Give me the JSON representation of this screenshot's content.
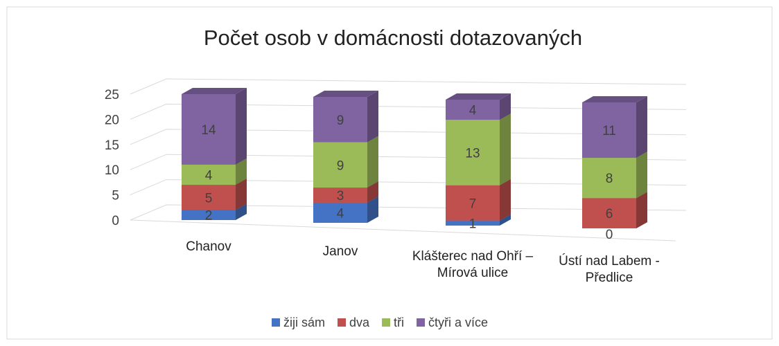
{
  "chart_data": {
    "type": "bar3d_stacked",
    "title": "Počet osob v domácnosti dotazovaných",
    "categories": [
      "Chanov",
      "Janov",
      "Klášterec nad Ohří – Mírová ulice",
      "Ústí nad Labem - Předlice"
    ],
    "series": [
      {
        "name": "žiji sám",
        "color": "#4472c4",
        "values": [
          2,
          4,
          1,
          0
        ]
      },
      {
        "name": "dva",
        "color": "#c0504d",
        "values": [
          5,
          3,
          7,
          6
        ]
      },
      {
        "name": "tři",
        "color": "#9bbb59",
        "values": [
          4,
          9,
          13,
          8
        ]
      },
      {
        "name": "čtyři a více",
        "color": "#8064a2",
        "values": [
          14,
          9,
          4,
          11
        ]
      }
    ],
    "ylim": [
      0,
      25
    ],
    "yticks": [
      0,
      5,
      10,
      15,
      20,
      25
    ],
    "grid": true,
    "legend": "bottom"
  }
}
